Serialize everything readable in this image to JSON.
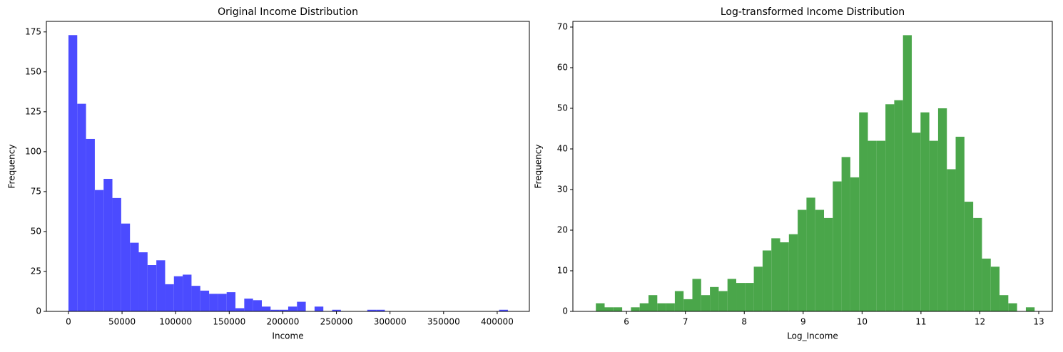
{
  "chart_data": [
    {
      "type": "histogram",
      "title": "Original Income Distribution",
      "x_label": "Income",
      "y_label": "Frequency",
      "color": "#4b4bff",
      "bins": [
        0,
        8200,
        16400,
        24600,
        32800,
        41000,
        49200,
        57400,
        65600,
        73800,
        82000,
        90200,
        98400,
        106600,
        114800,
        123000,
        131200,
        139400,
        147600,
        155800,
        164000,
        172200,
        180400,
        188600,
        196800,
        205000,
        213200,
        221400,
        229600,
        237800,
        246000,
        254200,
        262400,
        270600,
        278800,
        287000,
        295200,
        303400,
        311600,
        319800,
        328000,
        336200,
        344400,
        352600,
        360800,
        369000,
        377200,
        385400,
        393600,
        401800,
        410000
      ],
      "values": [
        173,
        130,
        108,
        76,
        83,
        71,
        55,
        43,
        37,
        29,
        32,
        17,
        22,
        23,
        16,
        13,
        11,
        11,
        12,
        2,
        8,
        7,
        3,
        1,
        1,
        3,
        6,
        0,
        3,
        0,
        1,
        0,
        0,
        0,
        1,
        1,
        0,
        0,
        0,
        0,
        0,
        0,
        0,
        0,
        0,
        0,
        0,
        0,
        0,
        1
      ],
      "xlim": [
        -20600,
        430000
      ],
      "ylim": [
        0,
        181.6
      ],
      "xticks": [
        0,
        50000,
        100000,
        150000,
        200000,
        250000,
        300000,
        350000,
        400000
      ],
      "yticks": [
        0,
        25,
        50,
        75,
        100,
        125,
        150,
        175
      ]
    },
    {
      "type": "histogram",
      "title": "Log-transformed Income Distribution",
      "x_label": "Log_Income",
      "y_label": "Frequency",
      "color": "#4aa64a",
      "bins": [
        5.48,
        5.629,
        5.778,
        5.927,
        6.076,
        6.225,
        6.374,
        6.523,
        6.672,
        6.821,
        6.97,
        7.119,
        7.268,
        7.417,
        7.566,
        7.715,
        7.864,
        8.013,
        8.162,
        8.311,
        8.46,
        8.609,
        8.758,
        8.907,
        9.056,
        9.205,
        9.354,
        9.503,
        9.652,
        9.801,
        9.95,
        10.099,
        10.248,
        10.397,
        10.546,
        10.695,
        10.844,
        10.993,
        11.142,
        11.291,
        11.44,
        11.589,
        11.738,
        11.887,
        12.036,
        12.185,
        12.334,
        12.483,
        12.632,
        12.781,
        12.93
      ],
      "values": [
        2,
        1,
        1,
        0,
        1,
        2,
        4,
        2,
        2,
        5,
        3,
        8,
        4,
        6,
        5,
        8,
        7,
        7,
        11,
        15,
        18,
        17,
        19,
        25,
        28,
        25,
        23,
        32,
        38,
        33,
        49,
        42,
        42,
        51,
        52,
        68,
        44,
        49,
        42,
        50,
        35,
        43,
        27,
        23,
        13,
        11,
        4,
        2,
        0,
        1
      ],
      "xlim": [
        5.09,
        13.23
      ],
      "ylim": [
        0,
        71.4
      ],
      "xticks": [
        6,
        7,
        8,
        9,
        10,
        11,
        12,
        13
      ],
      "yticks": [
        0,
        10,
        20,
        30,
        40,
        50,
        60,
        70
      ]
    }
  ]
}
